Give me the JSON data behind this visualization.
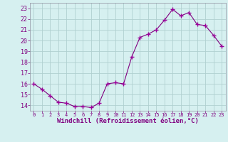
{
  "x": [
    0,
    1,
    2,
    3,
    4,
    5,
    6,
    7,
    8,
    9,
    10,
    11,
    12,
    13,
    14,
    15,
    16,
    17,
    18,
    19,
    20,
    21,
    22,
    23
  ],
  "y": [
    16.0,
    15.5,
    14.9,
    14.3,
    14.2,
    13.9,
    13.9,
    13.8,
    14.2,
    16.0,
    16.1,
    16.0,
    18.5,
    20.3,
    20.6,
    21.0,
    21.9,
    22.9,
    22.3,
    22.6,
    21.5,
    21.4,
    20.5,
    19.5
  ],
  "xlabel": "Windchill (Refroidissement éolien,°C)",
  "ylim": [
    13.5,
    23.5
  ],
  "yticks": [
    14,
    15,
    16,
    17,
    18,
    19,
    20,
    21,
    22,
    23
  ],
  "xticks": [
    0,
    1,
    2,
    3,
    4,
    5,
    6,
    7,
    8,
    9,
    10,
    11,
    12,
    13,
    14,
    15,
    16,
    17,
    18,
    19,
    20,
    21,
    22,
    23
  ],
  "line_color": "#800080",
  "marker_color": "#9b009b",
  "bg_color": "#d6f0f0",
  "grid_color": "#b0d0d0",
  "text_color": "#800080",
  "spine_color": "#9090a0"
}
